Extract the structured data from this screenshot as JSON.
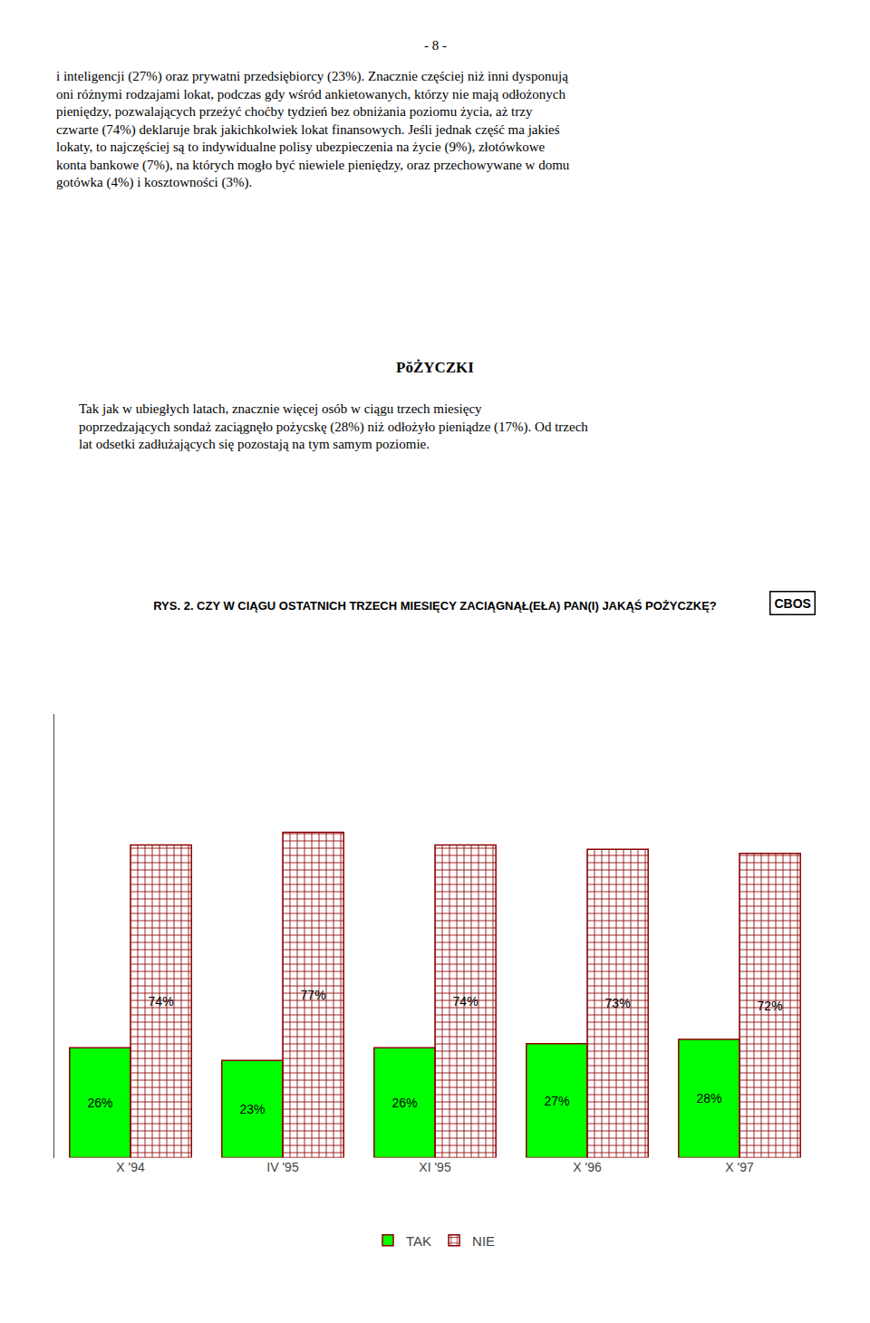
{
  "chart_data": {
    "type": "bar",
    "title": "RYS. 2. CZY W CIĄGU OSTATNICH TRZECH MIESIĘCY ZACIĄGNĄŁ(EŁA) PAN(I) JAKĄŚ POŻYCZKĘ?",
    "annotations": [
      "- 8 -",
      "i inteligencji (27%) oraz prywatni przedsiębiorcy (23%). Znacznie częściej niż inni dysponują\noni różnymi rodzajami lokat, podczas gdy wśród ankietowanych, którzy nie mają odłożonych\npieniędzy, pozwalających przeżyć choćby tydzień bez obniżania poziomu życia, aż trzy\nczwarte (74%) deklaruje brak jakichkolwiek lokat finansowych. Jeśli jednak część ma jakieś\nlokaty, to najczęściej są to indywidualne polisy ubezpieczenia na życie (9%), złotówkowe\nkonta bankowe (7%), na których mogło być niewiele pieniędzy, oraz przechowywane w domu\ngotówka (4%) i kosztowności (3%).",
      "PŏŻYCZKI",
      "Tak jak w ubiegłych latach, znacznie więcej osób w ciągu trzech miesięcy\npoprzedzających sondaż zaciągnęło pożycskę (28%) niż odłożyło pieniądze (17%). Od trzech\nlat odsetki zadłużających się pozostają na tym samym poziomie.",
      "CBOS"
    ],
    "categories": [
      "X '94",
      "IV '95",
      "XI '95",
      "X '96",
      "X '97"
    ],
    "series": [
      {
        "name": "TAK",
        "color": "#00ff00",
        "values": [
          26,
          23,
          26,
          27,
          28
        ],
        "value_labels": [
          "26%",
          "23%",
          "26%",
          "27%",
          "28%"
        ]
      },
      {
        "name": "NIE",
        "color": "#f5c9a0",
        "values": [
          74,
          77,
          74,
          73,
          72
        ],
        "value_labels": [
          "74%",
          "77%",
          "74%",
          "73%",
          "72%"
        ]
      }
    ],
    "ylim": [
      0,
      105
    ],
    "yticks": [],
    "grid": false,
    "legend": "bottom",
    "data_labels": true,
    "tick_labels": "x"
  }
}
